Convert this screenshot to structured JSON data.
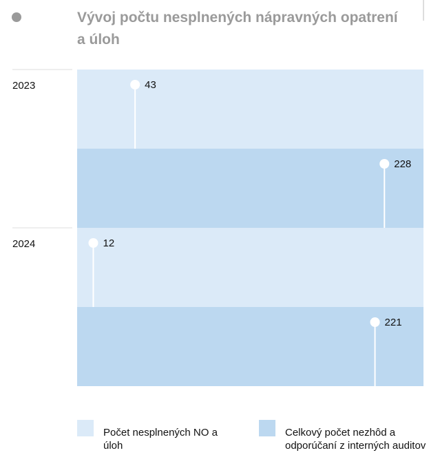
{
  "chart_data": {
    "type": "bar",
    "title": "Vývoj počtu nesplnených nápravných opatrení a úloh",
    "categories": [
      "2023",
      "2024"
    ],
    "series": [
      {
        "name": "Počet nesplnených NO a úloh",
        "color": "#dbeaf8",
        "values": [
          43,
          12
        ]
      },
      {
        "name": "Celkový počet nezhôd a odporúčaní z interných auditov",
        "color": "#bcd8f0",
        "values": [
          228,
          221
        ]
      }
    ],
    "xlim": [
      0,
      257
    ]
  }
}
